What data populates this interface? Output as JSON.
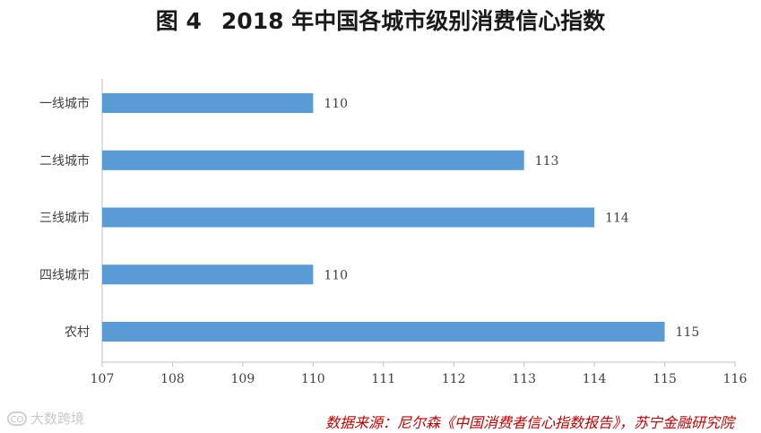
{
  "title": {
    "figure": "图 4",
    "text": "2018 年中国各城市级别消费信心指数"
  },
  "chart_data": {
    "type": "bar",
    "orientation": "horizontal",
    "categories": [
      "一线城市",
      "二线城市",
      "三线城市",
      "四线城市",
      "农村"
    ],
    "values": [
      110,
      113,
      114,
      110,
      115
    ],
    "data_labels": [
      "110",
      "113",
      "114",
      "110",
      "115"
    ],
    "xlim": [
      107,
      116
    ],
    "xticks": [
      "107",
      "108",
      "109",
      "110",
      "111",
      "112",
      "113",
      "114",
      "115",
      "116"
    ],
    "grid": false,
    "bar_color": "#5b9bd5"
  },
  "source": "数据来源：尼尔森《中国消费者信心指数报告》，苏宁金融研究院",
  "watermark": {
    "logo": "CO",
    "text": "大数跨境"
  },
  "colors": {
    "bar": "#5b9bd5",
    "source_text": "#c00000",
    "axis": "#bfbfbf"
  }
}
